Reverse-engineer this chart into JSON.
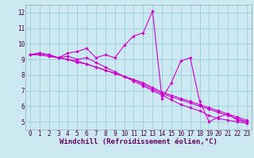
{
  "xlabel": "Windchill (Refroidissement éolien,°C)",
  "background_color": "#cce8f0",
  "line_color": "#cc00cc",
  "grid_color": "#99ccdd",
  "xlim": [
    -0.5,
    23.5
  ],
  "ylim": [
    4.5,
    12.5
  ],
  "yticks": [
    5,
    6,
    7,
    8,
    9,
    10,
    11,
    12
  ],
  "xticks": [
    0,
    1,
    2,
    3,
    4,
    5,
    6,
    7,
    8,
    9,
    10,
    11,
    12,
    13,
    14,
    15,
    16,
    17,
    18,
    19,
    20,
    21,
    22,
    23
  ],
  "series": [
    [
      9.3,
      9.4,
      9.3,
      9.1,
      9.4,
      9.5,
      9.7,
      9.1,
      9.3,
      9.1,
      9.9,
      10.5,
      10.7,
      12.1,
      6.5,
      7.5,
      8.9,
      9.1,
      6.3,
      5.0,
      5.3,
      5.5,
      5.1,
      5.0
    ],
    [
      9.3,
      9.4,
      9.3,
      9.1,
      9.2,
      9.0,
      9.1,
      8.8,
      8.5,
      8.2,
      7.9,
      7.6,
      7.3,
      7.0,
      6.7,
      6.4,
      6.1,
      5.9,
      5.7,
      5.4,
      5.2,
      5.1,
      5.0,
      4.9
    ],
    [
      9.3,
      9.3,
      9.2,
      9.1,
      9.0,
      8.9,
      8.7,
      8.5,
      8.3,
      8.1,
      7.9,
      7.7,
      7.4,
      7.1,
      6.8,
      6.6,
      6.4,
      6.2,
      6.0,
      5.8,
      5.6,
      5.4,
      5.2,
      5.0
    ],
    [
      9.3,
      9.3,
      9.2,
      9.1,
      9.0,
      8.8,
      8.7,
      8.5,
      8.3,
      8.1,
      7.9,
      7.7,
      7.5,
      7.2,
      6.9,
      6.7,
      6.5,
      6.3,
      6.1,
      5.9,
      5.7,
      5.5,
      5.3,
      5.1
    ]
  ],
  "marker": "D",
  "marker_size": 1.8,
  "linewidth": 0.8,
  "tick_labelsize": 5.5,
  "xlabel_fontsize": 6.5
}
